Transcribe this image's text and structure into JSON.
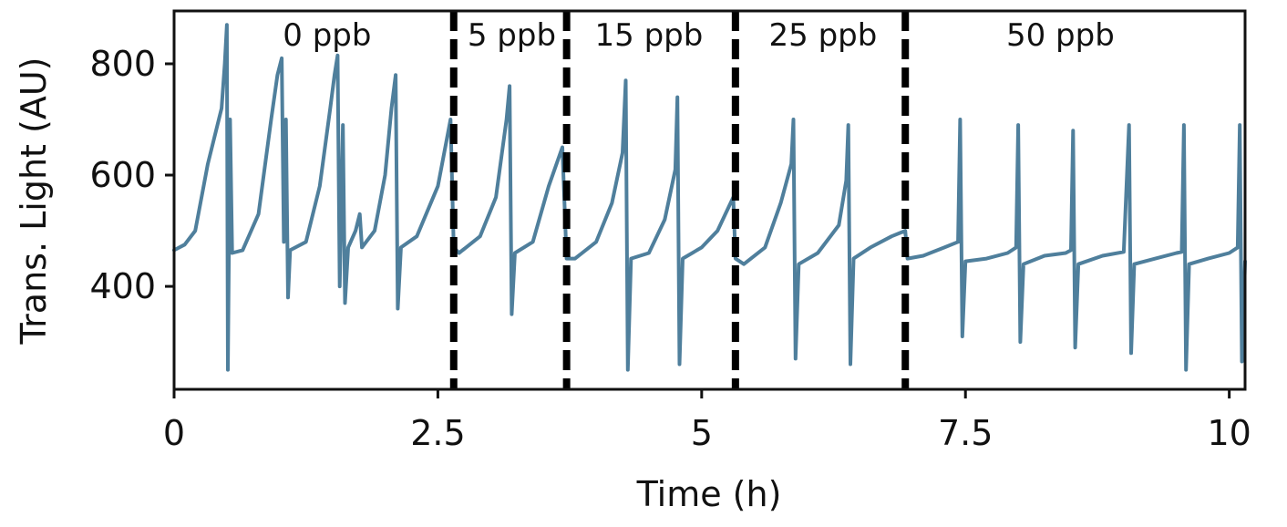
{
  "chart_data": {
    "type": "line",
    "xlabel": "Time (h)",
    "ylabel": "Trans. Light (AU)",
    "xlim": [
      0,
      10.15
    ],
    "ylim": [
      215,
      895
    ],
    "x_ticks": [
      {
        "value": 0,
        "label": "0"
      },
      {
        "value": 2.5,
        "label": "2.5"
      },
      {
        "value": 5,
        "label": "5"
      },
      {
        "value": 7.5,
        "label": "7.5"
      },
      {
        "value": 10,
        "label": "10"
      }
    ],
    "y_ticks": [
      {
        "value": 400,
        "label": "400"
      },
      {
        "value": 600,
        "label": "600"
      },
      {
        "value": 800,
        "label": "800"
      }
    ],
    "grid": false,
    "line_color": "#4f7f9c",
    "divider_color": "#000000",
    "regions": [
      {
        "label": "0 ppb",
        "start": 0,
        "end": 2.65,
        "label_x": 1.45
      },
      {
        "label": "5 ppb",
        "start": 2.65,
        "end": 3.72,
        "label_x": 3.2
      },
      {
        "label": "15 ppb",
        "start": 3.72,
        "end": 5.32,
        "label_x": 4.5
      },
      {
        "label": "25 ppb",
        "start": 5.32,
        "end": 6.93,
        "label_x": 6.15
      },
      {
        "label": "50 ppb",
        "start": 6.93,
        "end": 10.15,
        "label_x": 8.4
      }
    ],
    "dividers": [
      2.65,
      3.72,
      5.32,
      6.93
    ],
    "series": [
      {
        "points": [
          [
            0,
            465
          ],
          [
            0.1,
            475
          ],
          [
            0.2,
            500
          ],
          [
            0.32,
            620
          ],
          [
            0.45,
            720
          ],
          [
            0.48,
            800
          ],
          [
            0.5,
            870
          ],
          [
            0.51,
            250
          ],
          [
            0.53,
            700
          ],
          [
            0.55,
            460
          ],
          [
            0.65,
            465
          ],
          [
            0.8,
            530
          ],
          [
            0.92,
            700
          ],
          [
            0.98,
            780
          ],
          [
            1.02,
            810
          ],
          [
            1.04,
            480
          ],
          [
            1.06,
            700
          ],
          [
            1.08,
            380
          ],
          [
            1.1,
            465
          ],
          [
            1.25,
            480
          ],
          [
            1.38,
            580
          ],
          [
            1.48,
            720
          ],
          [
            1.52,
            780
          ],
          [
            1.55,
            815
          ],
          [
            1.57,
            400
          ],
          [
            1.6,
            690
          ],
          [
            1.62,
            370
          ],
          [
            1.65,
            470
          ],
          [
            1.72,
            500
          ],
          [
            1.76,
            530
          ],
          [
            1.78,
            470
          ],
          [
            1.9,
            500
          ],
          [
            2.0,
            600
          ],
          [
            2.06,
            720
          ],
          [
            2.1,
            780
          ],
          [
            2.12,
            360
          ],
          [
            2.15,
            470
          ],
          [
            2.3,
            490
          ],
          [
            2.5,
            580
          ],
          [
            2.62,
            700
          ],
          [
            2.65,
            470
          ],
          [
            2.7,
            460
          ],
          [
            2.9,
            490
          ],
          [
            3.05,
            560
          ],
          [
            3.15,
            700
          ],
          [
            3.18,
            760
          ],
          [
            3.2,
            350
          ],
          [
            3.23,
            460
          ],
          [
            3.4,
            480
          ],
          [
            3.55,
            580
          ],
          [
            3.68,
            650
          ],
          [
            3.72,
            450
          ],
          [
            3.8,
            450
          ],
          [
            4.0,
            480
          ],
          [
            4.15,
            550
          ],
          [
            4.25,
            640
          ],
          [
            4.28,
            770
          ],
          [
            4.3,
            250
          ],
          [
            4.33,
            450
          ],
          [
            4.5,
            460
          ],
          [
            4.65,
            520
          ],
          [
            4.75,
            610
          ],
          [
            4.77,
            740
          ],
          [
            4.79,
            260
          ],
          [
            4.82,
            450
          ],
          [
            5.0,
            470
          ],
          [
            5.15,
            500
          ],
          [
            5.3,
            560
          ],
          [
            5.32,
            450
          ],
          [
            5.4,
            440
          ],
          [
            5.6,
            470
          ],
          [
            5.75,
            550
          ],
          [
            5.85,
            620
          ],
          [
            5.87,
            700
          ],
          [
            5.89,
            270
          ],
          [
            5.92,
            440
          ],
          [
            6.1,
            460
          ],
          [
            6.3,
            510
          ],
          [
            6.37,
            590
          ],
          [
            6.39,
            690
          ],
          [
            6.41,
            260
          ],
          [
            6.44,
            450
          ],
          [
            6.6,
            470
          ],
          [
            6.8,
            490
          ],
          [
            6.93,
            500
          ],
          [
            6.95,
            450
          ],
          [
            7.1,
            455
          ],
          [
            7.3,
            470
          ],
          [
            7.43,
            480
          ],
          [
            7.45,
            700
          ],
          [
            7.47,
            310
          ],
          [
            7.5,
            445
          ],
          [
            7.7,
            450
          ],
          [
            7.9,
            460
          ],
          [
            7.98,
            470
          ],
          [
            8.0,
            690
          ],
          [
            8.02,
            300
          ],
          [
            8.05,
            440
          ],
          [
            8.25,
            455
          ],
          [
            8.45,
            460
          ],
          [
            8.5,
            465
          ],
          [
            8.52,
            680
          ],
          [
            8.54,
            290
          ],
          [
            8.57,
            440
          ],
          [
            8.8,
            455
          ],
          [
            9.0,
            462
          ],
          [
            9.05,
            690
          ],
          [
            9.07,
            280
          ],
          [
            9.1,
            440
          ],
          [
            9.3,
            450
          ],
          [
            9.5,
            460
          ],
          [
            9.55,
            462
          ],
          [
            9.57,
            690
          ],
          [
            9.59,
            250
          ],
          [
            9.62,
            440
          ],
          [
            9.8,
            450
          ],
          [
            10.0,
            460
          ],
          [
            10.08,
            470
          ],
          [
            10.1,
            690
          ],
          [
            10.12,
            265
          ],
          [
            10.15,
            445
          ]
        ]
      }
    ]
  }
}
